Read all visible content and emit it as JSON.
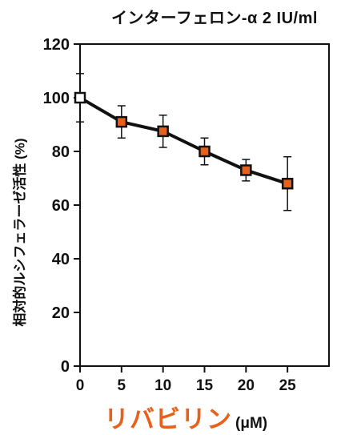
{
  "chart_data": {
    "type": "line",
    "title": "インターフェロン-α 2 IU/ml",
    "xlabel": "リバビリン",
    "xlabel_unit": "(μM)",
    "ylabel": "相対的ルシフェラーゼ活性 (%)",
    "x": [
      0,
      5,
      10,
      15,
      20,
      25
    ],
    "xticks": [
      0,
      5,
      10,
      15,
      20,
      25
    ],
    "yticks": [
      0,
      20,
      40,
      60,
      80,
      100,
      120
    ],
    "xlim": [
      0,
      30
    ],
    "ylim": [
      0,
      120
    ],
    "grid": false,
    "series": [
      {
        "values": [
          100,
          91,
          87.5,
          80,
          73,
          68
        ],
        "error": [
          9,
          6,
          6,
          5,
          4,
          10
        ],
        "marker_colors": [
          "#ffffff",
          "#e8611c",
          "#e8611c",
          "#e8611c",
          "#e8611c",
          "#e8611c"
        ]
      }
    ],
    "colors": {
      "axis": "#111111",
      "line": "#111111",
      "marker": "#e8611c",
      "xlabel": "#e8611c"
    }
  }
}
